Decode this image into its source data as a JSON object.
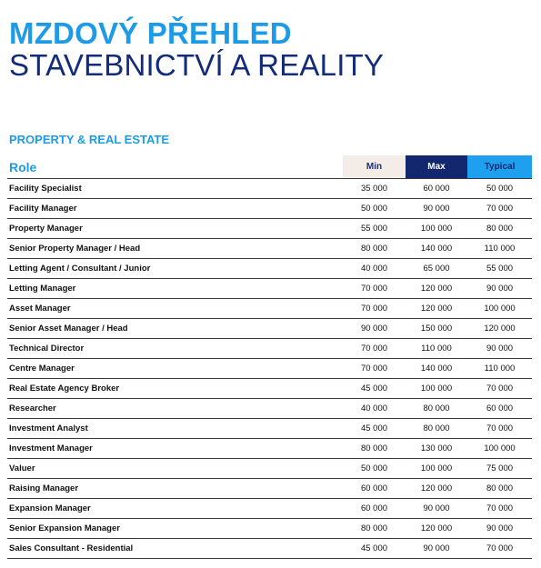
{
  "header": {
    "title_line1": "MZDOVÝ PŘEHLED",
    "title_line2": "STAVEBNICTVÍ A REALITY"
  },
  "section": {
    "title": "PROPERTY & REAL ESTATE"
  },
  "table": {
    "columns": {
      "role": "Role",
      "min": "Min",
      "max": "Max",
      "typical": "Typical"
    },
    "rows": [
      {
        "role": "Facility Specialist",
        "min": "35 000",
        "max": "60 000",
        "typical": "50 000"
      },
      {
        "role": "Facility Manager",
        "min": "50 000",
        "max": "90 000",
        "typical": "70 000"
      },
      {
        "role": "Property Manager",
        "min": "55 000",
        "max": "100 000",
        "typical": "80 000"
      },
      {
        "role": "Senior Property Manager / Head",
        "min": "80 000",
        "max": "140 000",
        "typical": "110 000"
      },
      {
        "role": "Letting Agent / Consultant / Junior",
        "min": "40 000",
        "max": "65 000",
        "typical": "55 000"
      },
      {
        "role": "Letting Manager",
        "min": "70 000",
        "max": "120 000",
        "typical": "90 000"
      },
      {
        "role": "Asset Manager",
        "min": "70 000",
        "max": "120 000",
        "typical": "100 000"
      },
      {
        "role": "Senior Asset Manager / Head",
        "min": "90 000",
        "max": "150 000",
        "typical": "120 000"
      },
      {
        "role": "Technical Director",
        "min": "70 000",
        "max": "110 000",
        "typical": "90 000"
      },
      {
        "role": "Centre Manager",
        "min": "70 000",
        "max": "140 000",
        "typical": "110 000"
      },
      {
        "role": "Real Estate Agency Broker",
        "min": "45 000",
        "max": "100 000",
        "typical": "70 000"
      },
      {
        "role": "Researcher",
        "min": "40 000",
        "max": "80 000",
        "typical": "60 000"
      },
      {
        "role": "Investment Analyst",
        "min": "45 000",
        "max": "80 000",
        "typical": "70 000"
      },
      {
        "role": "Investment Manager",
        "min": "80 000",
        "max": "130 000",
        "typical": "100 000"
      },
      {
        "role": "Valuer",
        "min": "50 000",
        "max": "100 000",
        "typical": "75 000"
      },
      {
        "role": "Raising Manager",
        "min": "60 000",
        "max": "120 000",
        "typical": "80 000"
      },
      {
        "role": "Expansion Manager",
        "min": "60 000",
        "max": "90 000",
        "typical": "70 000"
      },
      {
        "role": "Senior Expansion Manager",
        "min": "80 000",
        "max": "120 000",
        "typical": "90 000"
      },
      {
        "role": "Sales Consultant - Residential",
        "min": "45 000",
        "max": "90 000",
        "typical": "70 000"
      }
    ]
  },
  "colors": {
    "accent_blue": "#1e9be6",
    "navy": "#13276f",
    "min_header_bg": "#f4ece6",
    "typical_header_bg": "#1fa0ee"
  }
}
